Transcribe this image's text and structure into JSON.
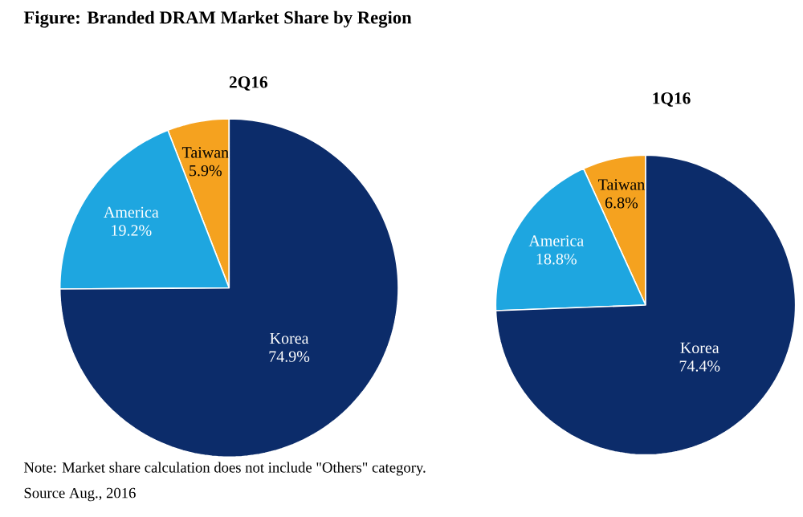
{
  "chart_data": [
    {
      "type": "pie",
      "title": "Figure: Branded DRAM Market Share by Region",
      "subtitle": "2Q16",
      "categories": [
        "Taiwan",
        "America",
        "Korea"
      ],
      "values": [
        5.9,
        19.2,
        74.9
      ],
      "colors": [
        "#f5a21f",
        "#1ea6e0",
        "#0c2c6a"
      ],
      "value_labels": [
        "5.9%",
        "19.2%",
        "74.9%"
      ],
      "annotations": [
        "Note: Market share calculation does not include \"Others\" category.",
        "Source Aug., 2016"
      ]
    },
    {
      "type": "pie",
      "subtitle": "1Q16",
      "categories": [
        "Taiwan",
        "America",
        "Korea"
      ],
      "values": [
        6.8,
        18.8,
        74.4
      ],
      "colors": [
        "#f5a21f",
        "#1ea6e0",
        "#0c2c6a"
      ],
      "value_labels": [
        "6.8%",
        "18.8%",
        "74.4%"
      ]
    }
  ]
}
